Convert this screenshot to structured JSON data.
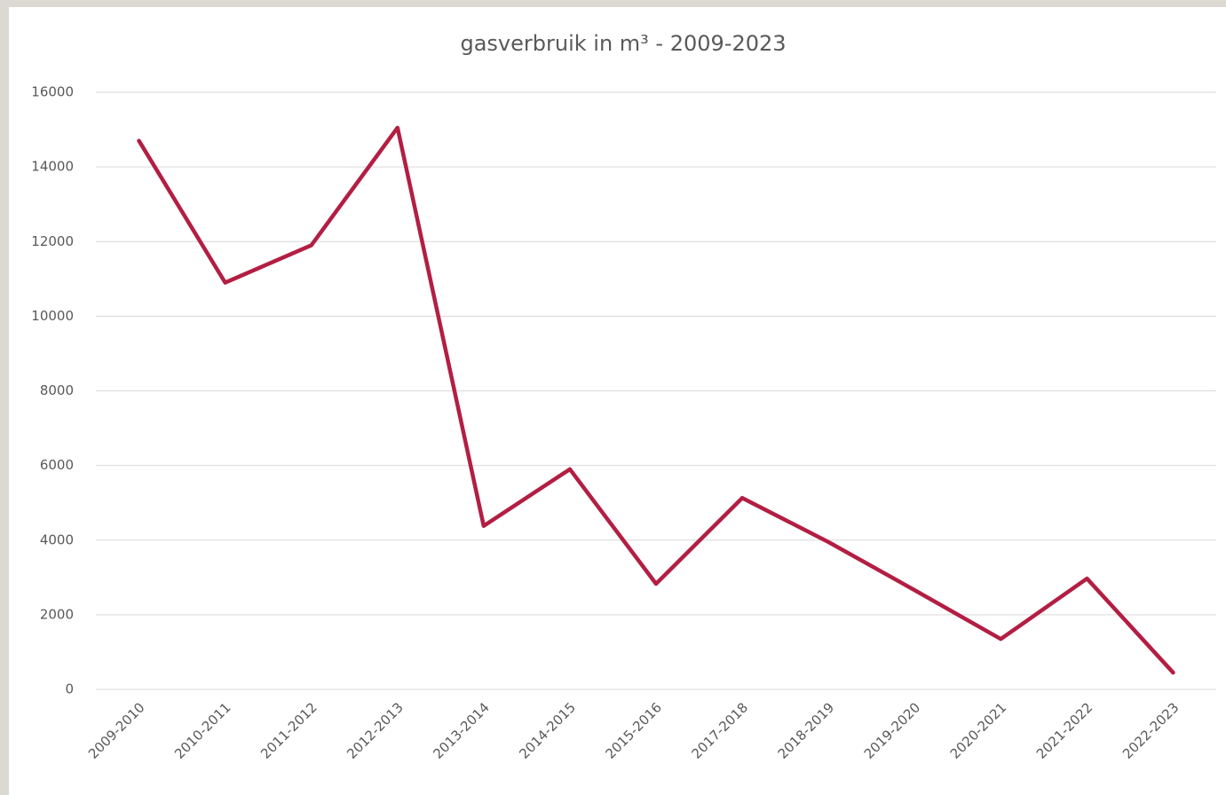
{
  "chart_data": {
    "type": "line",
    "title": "gasverbruik in m³ - 2009-2023",
    "categories": [
      "2009-2010",
      "2010-2011",
      "2011-2012",
      "2012-2013",
      "2013-2014",
      "2014-2015",
      "2015-2016",
      "2017-2018",
      "2018-2019",
      "2019-2020",
      "2020-2021",
      "2021-2022",
      "2022-2023"
    ],
    "series": [
      {
        "name": "gasverbruik",
        "color": "#b31e43",
        "values": [
          14700,
          10900,
          11900,
          15050,
          4380,
          5900,
          2830,
          5130,
          3950,
          2660,
          1350,
          2970,
          450
        ]
      }
    ],
    "ylim": [
      0,
      16000
    ],
    "yticks": [
      0,
      2000,
      4000,
      6000,
      8000,
      10000,
      12000,
      14000,
      16000
    ],
    "grid": true
  }
}
